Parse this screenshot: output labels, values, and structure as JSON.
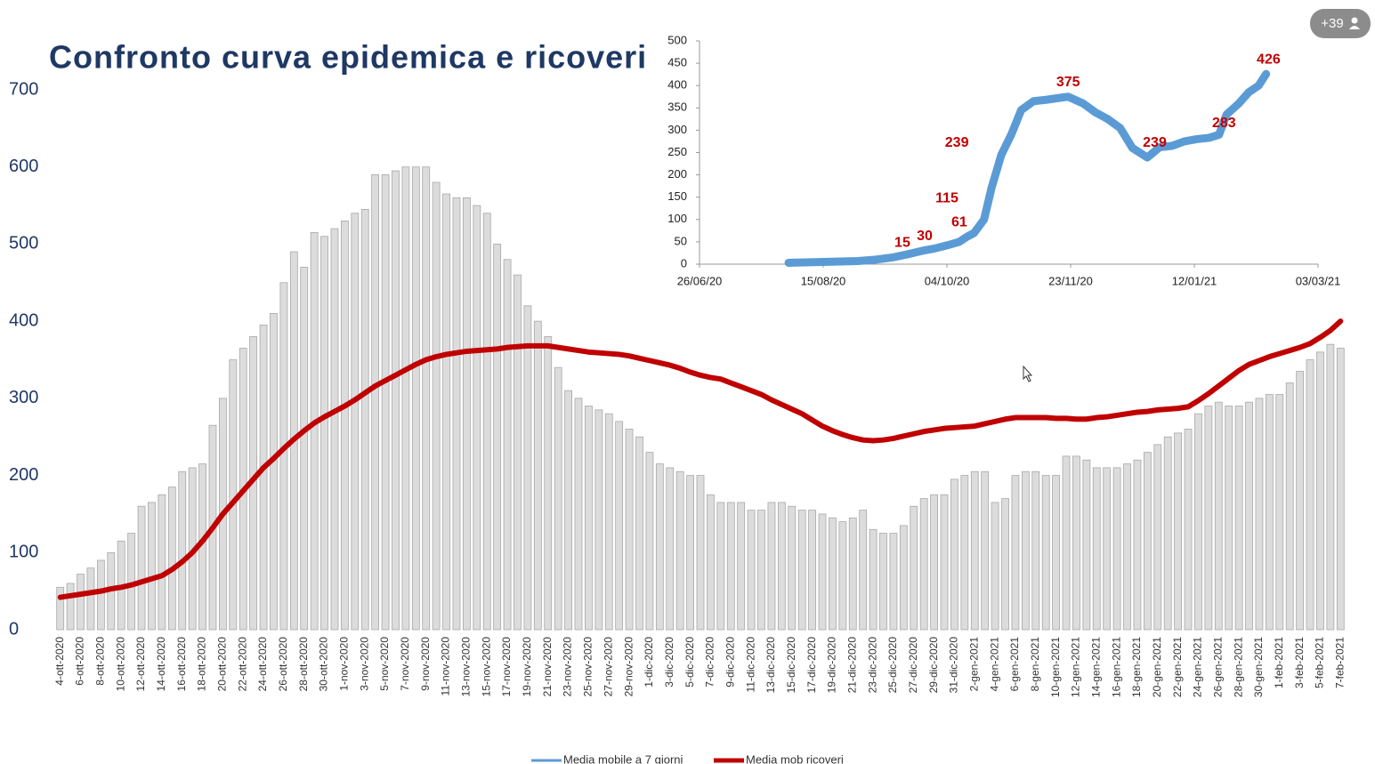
{
  "badge": "+39",
  "chart_data": [
    {
      "type": "bar",
      "title": "Confronto curva epidemica e ricoveri",
      "categories": [
        "4-ott-2020",
        null,
        "6-ott-2020",
        null,
        "8-ott-2020",
        null,
        "10-ott-2020",
        null,
        "12-ott-2020",
        null,
        "14-ott-2020",
        null,
        "16-ott-2020",
        null,
        "18-ott-2020",
        null,
        "20-ott-2020",
        null,
        "22-ott-2020",
        null,
        "24-ott-2020",
        null,
        "26-ott-2020",
        null,
        "28-ott-2020",
        null,
        "30-ott-2020",
        null,
        "1-nov-2020",
        null,
        "3-nov-2020",
        null,
        "5-nov-2020",
        null,
        "7-nov-2020",
        null,
        "9-nov-2020",
        null,
        "11-nov-2020",
        null,
        "13-nov-2020",
        null,
        "15-nov-2020",
        null,
        "17-nov-2020",
        null,
        "19-nov-2020",
        null,
        "21-nov-2020",
        null,
        "23-nov-2020",
        null,
        "25-nov-2020",
        null,
        "27-nov-2020",
        null,
        "29-nov-2020",
        null,
        "1-dic-2020",
        null,
        "3-dic-2020",
        null,
        "5-dic-2020",
        null,
        "7-dic-2020",
        null,
        "9-dic-2020",
        null,
        "11-dic-2020",
        null,
        "13-dic-2020",
        null,
        "15-dic-2020",
        null,
        "17-dic-2020",
        null,
        "19-dic-2020",
        null,
        "21-dic-2020",
        null,
        "23-dic-2020",
        null,
        "25-dic-2020",
        null,
        "27-dic-2020",
        null,
        "29-dic-2020",
        null,
        "31-dic-2020",
        null,
        "2-gen-2021",
        null,
        "4-gen-2021",
        null,
        "6-gen-2021",
        null,
        "8-gen-2021",
        null,
        "10-gen-2021",
        null,
        "12-gen-2021",
        null,
        "14-gen-2021",
        null,
        "16-gen-2021",
        null,
        "18-gen-2021",
        null,
        "20-gen-2021",
        null,
        "22-gen-2021",
        null,
        "24-gen-2021",
        null,
        "26-gen-2021",
        null,
        "28-gen-2021",
        null,
        "30-gen-2021",
        null,
        "1-feb-2021",
        null,
        "3-feb-2021",
        null,
        "5-feb-2021",
        null,
        "7-feb-2021"
      ],
      "series": [
        {
          "name": "Media mobile a 7 giorni",
          "type": "bar",
          "color": "#dcdcdc",
          "legend_color": "#5b9bd5",
          "values": [
            55,
            60,
            72,
            80,
            90,
            100,
            115,
            125,
            160,
            165,
            175,
            185,
            205,
            210,
            215,
            265,
            300,
            350,
            365,
            380,
            395,
            410,
            450,
            490,
            470,
            515,
            510,
            520,
            530,
            540,
            545,
            590,
            590,
            595,
            600,
            600,
            600,
            580,
            565,
            560,
            560,
            550,
            540,
            500,
            480,
            460,
            420,
            400,
            380,
            340,
            310,
            300,
            290,
            285,
            280,
            270,
            260,
            250,
            230,
            215,
            210,
            205,
            200,
            200,
            175,
            165,
            165,
            165,
            155,
            155,
            165,
            165,
            160,
            155,
            155,
            150,
            145,
            140,
            145,
            155,
            130,
            125,
            125,
            135,
            160,
            170,
            175,
            175,
            195,
            200,
            205,
            205,
            165,
            170,
            200,
            205,
            205,
            200,
            200,
            225,
            225,
            220,
            210,
            210,
            210,
            215,
            220,
            230,
            240,
            250,
            255,
            260,
            280,
            290,
            295,
            290,
            290,
            295,
            300,
            305,
            305,
            320,
            335,
            350,
            360,
            370,
            365
          ]
        },
        {
          "name": "Media mob ricoveri",
          "type": "line",
          "color": "#c00000",
          "values": [
            42,
            44,
            46,
            48,
            50,
            53,
            55,
            58,
            62,
            66,
            70,
            78,
            88,
            100,
            115,
            132,
            150,
            165,
            180,
            195,
            210,
            222,
            235,
            247,
            258,
            268,
            276,
            283,
            290,
            298,
            307,
            316,
            323,
            330,
            337,
            344,
            350,
            354,
            357,
            359,
            361,
            362,
            363,
            364,
            366,
            367,
            368,
            368,
            368,
            366,
            364,
            362,
            360,
            359,
            358,
            357,
            355,
            352,
            349,
            346,
            343,
            339,
            334,
            330,
            327,
            325,
            320,
            315,
            310,
            305,
            298,
            292,
            286,
            280,
            272,
            264,
            258,
            253,
            249,
            246,
            245,
            246,
            248,
            251,
            254,
            257,
            259,
            261,
            262,
            263,
            264,
            267,
            270,
            273,
            275,
            275,
            275,
            275,
            274,
            274,
            273,
            273,
            275,
            276,
            278,
            280,
            282,
            283,
            285,
            286,
            287,
            289,
            297,
            306,
            316,
            326,
            336,
            344,
            349,
            354,
            358,
            362,
            366,
            371,
            379,
            388,
            400
          ]
        }
      ],
      "ylim": [
        0,
        700
      ],
      "yticks": [
        0,
        100,
        200,
        300,
        400,
        500,
        600,
        700
      ]
    },
    {
      "type": "line",
      "series": [
        {
          "color": "#5b9bd5",
          "x": [
            "2020-08-01",
            "2020-08-08",
            "2020-08-15",
            "2020-08-22",
            "2020-08-29",
            "2020-09-05",
            "2020-09-12",
            "2020-09-18",
            "2020-09-24",
            "2020-09-29",
            "2020-10-04",
            "2020-10-09",
            "2020-10-12",
            "2020-10-15",
            "2020-10-19",
            "2020-10-22",
            "2020-10-26",
            "2020-10-30",
            "2020-11-03",
            "2020-11-08",
            "2020-11-13",
            "2020-11-18",
            "2020-11-22",
            "2020-11-28",
            "2020-12-03",
            "2020-12-08",
            "2020-12-13",
            "2020-12-18",
            "2020-12-24",
            "2020-12-29",
            "2021-01-03",
            "2021-01-08",
            "2021-01-13",
            "2021-01-18",
            "2021-01-22",
            "2021-01-25",
            "2021-01-30",
            "2021-02-03",
            "2021-02-07",
            "2021-02-10"
          ],
          "values": [
            3,
            4,
            5,
            6,
            7,
            10,
            15,
            22,
            30,
            35,
            42,
            50,
            61,
            70,
            100,
            170,
            245,
            290,
            345,
            365,
            368,
            372,
            375,
            360,
            340,
            325,
            305,
            260,
            239,
            262,
            265,
            275,
            280,
            283,
            290,
            335,
            360,
            385,
            400,
            426
          ]
        }
      ],
      "labels": [
        {
          "x": "2020-09-16",
          "value": 15
        },
        {
          "x": "2020-09-25",
          "value": 30
        },
        {
          "x": "2020-10-09",
          "value": 61
        },
        {
          "x": "2020-10-04",
          "value": 115
        },
        {
          "x": "2020-10-08",
          "value": 239
        },
        {
          "x": "2020-11-22",
          "value": 375
        },
        {
          "x": "2020-12-27",
          "value": 239
        },
        {
          "x": "2021-01-24",
          "value": 283
        },
        {
          "x": "2021-02-11",
          "value": 426
        }
      ],
      "xlim": [
        "2020-06-26",
        "2021-03-03"
      ],
      "xticks": [
        {
          "value": "2020-06-26",
          "label": "26/06/20"
        },
        {
          "value": "2020-08-15",
          "label": "15/08/20"
        },
        {
          "value": "2020-10-04",
          "label": "04/10/20"
        },
        {
          "value": "2020-11-23",
          "label": "23/11/20"
        },
        {
          "value": "2021-01-12",
          "label": "12/01/21"
        },
        {
          "value": "2021-03-03",
          "label": "03/03/21"
        }
      ],
      "ylim": [
        0,
        500
      ],
      "yticks": [
        0,
        50,
        100,
        150,
        200,
        250,
        300,
        350,
        400,
        450,
        500
      ]
    }
  ]
}
